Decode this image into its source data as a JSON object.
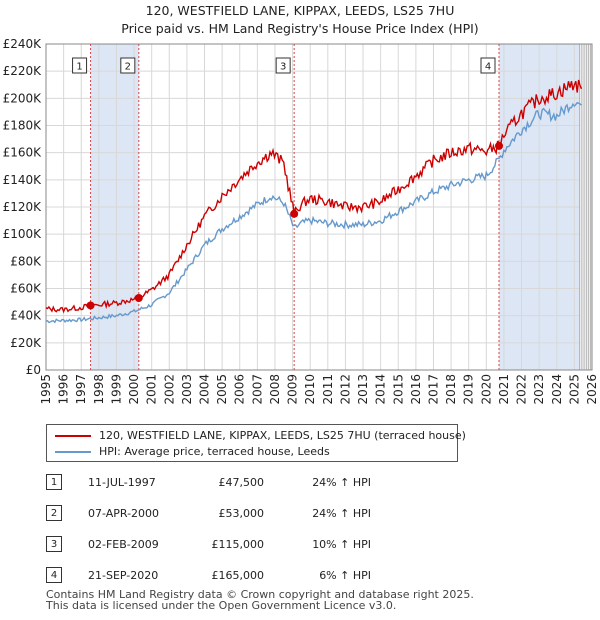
{
  "header": {
    "title_line1": "120, WESTFIELD LANE, KIPPAX, LEEDS, LS25 7HU",
    "title_line2": "Price paid vs. HM Land Registry's House Price Index (HPI)"
  },
  "colors": {
    "property": "#cc0000",
    "hpi": "#6699cc",
    "shade": "#dde6f5",
    "marker_line": "#dd4444"
  },
  "chart_data": {
    "type": "line",
    "title": "Price paid vs. HM Land Registry's House Price Index (HPI)",
    "xlabel": "",
    "ylabel": "",
    "xlim": [
      1995,
      2026
    ],
    "ylim": [
      0,
      240000
    ],
    "x_ticks": [
      1995,
      1996,
      1997,
      1998,
      1999,
      2000,
      2001,
      2002,
      2003,
      2004,
      2005,
      2006,
      2007,
      2008,
      2009,
      2010,
      2011,
      2012,
      2013,
      2014,
      2015,
      2016,
      2017,
      2018,
      2019,
      2020,
      2021,
      2022,
      2023,
      2024,
      2025,
      2026
    ],
    "y_ticks": [
      0,
      20000,
      40000,
      60000,
      80000,
      100000,
      120000,
      140000,
      160000,
      180000,
      200000,
      220000,
      240000
    ],
    "y_tick_labels": [
      "£0",
      "£20K",
      "£40K",
      "£60K",
      "£80K",
      "£100K",
      "£120K",
      "£140K",
      "£160K",
      "£180K",
      "£200K",
      "£220K",
      "£240K"
    ],
    "shaded_ranges": [
      [
        1997.53,
        2000.27
      ],
      [
        2020.72,
        2025.3
      ]
    ],
    "forecast_start": 2025.3,
    "series": [
      {
        "name": "120, WESTFIELD LANE, KIPPAX, LEEDS, LS25 7HU (terraced house)",
        "x": [
          1995,
          1996,
          1997,
          1997.53,
          1998,
          1999,
          2000,
          2000.27,
          2001,
          2002,
          2003,
          2004,
          2005,
          2006,
          2007,
          2007.8,
          2008.5,
          2009.09,
          2009.5,
          2010,
          2011,
          2012,
          2013,
          2014,
          2015,
          2016,
          2017,
          2018,
          2019,
          2020,
          2020.72,
          2021,
          2022,
          2023,
          2024,
          2025,
          2025.4
        ],
        "y": [
          45000,
          44500,
          46000,
          47500,
          48000,
          49500,
          52000,
          53000,
          59000,
          70000,
          92000,
          113000,
          128000,
          141000,
          153000,
          160000,
          152000,
          115000,
          122000,
          126000,
          124000,
          120000,
          120000,
          124000,
          133000,
          143000,
          154000,
          160000,
          163000,
          161000,
          165000,
          173000,
          189000,
          200000,
          204000,
          211000,
          207000
        ]
      },
      {
        "name": "HPI: Average price, terraced house, Leeds",
        "x": [
          1995,
          1996,
          1997,
          1998,
          1999,
          2000,
          2001,
          2002,
          2003,
          2004,
          2005,
          2006,
          2007,
          2007.8,
          2008.5,
          2009.09,
          2009.5,
          2010,
          2011,
          2012,
          2013,
          2014,
          2015,
          2016,
          2017,
          2018,
          2019,
          2020,
          2020.72,
          2021,
          2022,
          2023,
          2024,
          2025,
          2025.4
        ],
        "y": [
          36000,
          36500,
          37000,
          38500,
          40000,
          43000,
          48000,
          57000,
          74000,
          92000,
          104000,
          113000,
          122000,
          128000,
          123000,
          104000,
          108000,
          110000,
          108000,
          107000,
          107000,
          110000,
          117000,
          124000,
          131000,
          136000,
          140000,
          143000,
          155000,
          162000,
          177000,
          189000,
          187000,
          198000,
          195000
        ]
      }
    ],
    "sales": [
      {
        "label": "1",
        "x": 1997.53,
        "y": 47500
      },
      {
        "label": "2",
        "x": 2000.27,
        "y": 53000
      },
      {
        "label": "3",
        "x": 2009.09,
        "y": 115000
      },
      {
        "label": "4",
        "x": 2020.72,
        "y": 165000
      }
    ]
  },
  "legend": {
    "property_label": "120, WESTFIELD LANE, KIPPAX, LEEDS, LS25 7HU (terraced house)",
    "hpi_label": "HPI: Average price, terraced house, Leeds"
  },
  "transactions": [
    {
      "num": "1",
      "date": "11-JUL-1997",
      "price": "£47,500",
      "hpi": "24% ↑ HPI"
    },
    {
      "num": "2",
      "date": "07-APR-2000",
      "price": "£53,000",
      "hpi": "24% ↑ HPI"
    },
    {
      "num": "3",
      "date": "02-FEB-2009",
      "price": "£115,000",
      "hpi": "10% ↑ HPI"
    },
    {
      "num": "4",
      "date": "21-SEP-2020",
      "price": "£165,000",
      "hpi": "6% ↑ HPI"
    }
  ],
  "footer": {
    "line1": "Contains HM Land Registry data © Crown copyright and database right 2025.",
    "line2": "This data is licensed under the Open Government Licence v3.0."
  }
}
